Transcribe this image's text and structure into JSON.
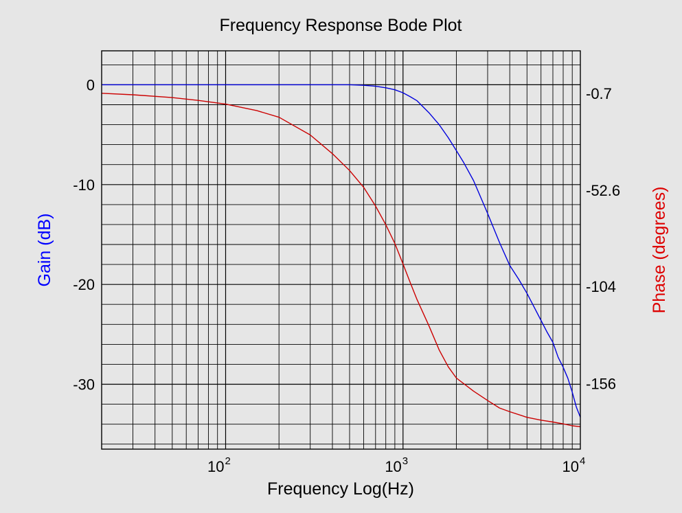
{
  "chart_data": {
    "type": "line",
    "title": "Frequency Response Bode Plot",
    "xlabel": "Frequency Log(Hz)",
    "ylabel_left": "Gain (dB)",
    "ylabel_right": "Phase (degrees)",
    "x_scale": "log",
    "xlim": [
      20,
      10000
    ],
    "ylim_left": [
      -36.5,
      3.4
    ],
    "ylim_right": [
      -191,
      22
    ],
    "grid": true,
    "x_ticks": [
      {
        "value": 100,
        "base": "10",
        "exp": "2"
      },
      {
        "value": 1000,
        "base": "10",
        "exp": "3"
      },
      {
        "value": 10000,
        "base": "10",
        "exp": "4"
      }
    ],
    "y_left_ticks": [
      {
        "value": 0,
        "label": "0"
      },
      {
        "value": -10,
        "label": "-10"
      },
      {
        "value": -20,
        "label": "-20"
      },
      {
        "value": -30,
        "label": "-30"
      }
    ],
    "y_right_ticks": [
      {
        "value": -0.7,
        "label": "-0.7"
      },
      {
        "value": -52.6,
        "label": "-52.6"
      },
      {
        "value": -104,
        "label": "-104"
      },
      {
        "value": -156,
        "label": "-156"
      }
    ],
    "series": [
      {
        "axis": "left",
        "color": "#0000dd",
        "x": [
          20,
          50,
          100,
          200,
          300,
          500,
          600,
          700,
          800,
          900,
          1000,
          1100,
          1200,
          1400,
          1600,
          1800,
          2000,
          2200,
          2500,
          3000,
          3500,
          4000,
          4500,
          5000,
          5500,
          6000,
          6500,
          7000,
          7500,
          8000,
          8500,
          9000,
          9500,
          10000
        ],
        "values": [
          0,
          0,
          0,
          0,
          0,
          0,
          -0.05,
          -0.15,
          -0.3,
          -0.5,
          -0.8,
          -1.2,
          -1.6,
          -2.8,
          -4.0,
          -5.3,
          -6.6,
          -7.8,
          -9.6,
          -12.9,
          -15.8,
          -18.1,
          -19.5,
          -20.9,
          -22.3,
          -23.6,
          -24.8,
          -25.8,
          -27.3,
          -28.3,
          -29.4,
          -30.8,
          -32.3,
          -33.3
        ]
      },
      {
        "axis": "right",
        "color": "#cc0000",
        "x": [
          20,
          30,
          50,
          70,
          100,
          150,
          200,
          300,
          400,
          500,
          600,
          700,
          800,
          900,
          1000,
          1100,
          1200,
          1400,
          1600,
          1800,
          2000,
          2500,
          3000,
          3500,
          4000,
          5000,
          6000,
          7000,
          8000,
          9000,
          10000
        ],
        "values": [
          -0.7,
          -1.5,
          -3,
          -4.5,
          -6.5,
          -10,
          -13.5,
          -23,
          -33,
          -42,
          -51,
          -61,
          -71,
          -81,
          -92,
          -102,
          -111,
          -125,
          -138,
          -147,
          -153,
          -160,
          -165,
          -169,
          -171,
          -174,
          -175.5,
          -176.5,
          -177.5,
          -178.5,
          -179
        ]
      }
    ]
  }
}
